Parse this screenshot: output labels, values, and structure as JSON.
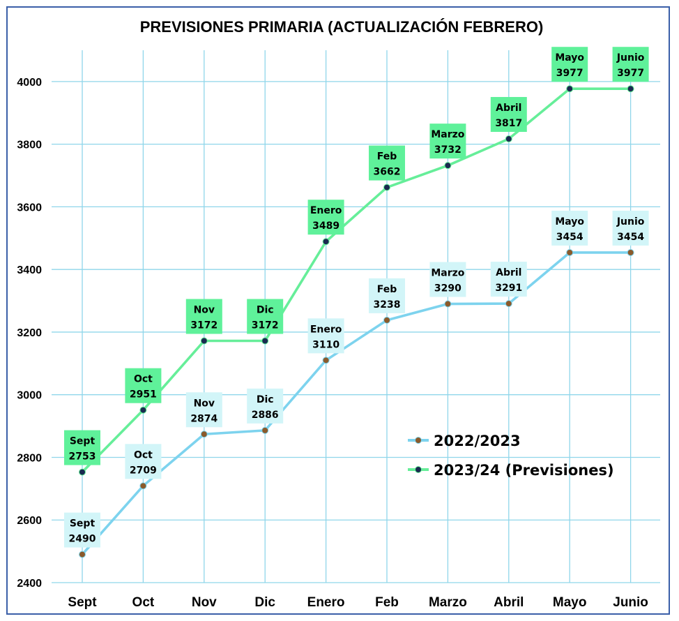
{
  "chart_data": {
    "type": "line",
    "title": "PREVISIONES PRIMARIA (ACTUALIZACIÓN FEBRERO)",
    "categories": [
      "Sept",
      "Oct",
      "Nov",
      "Dic",
      "Enero",
      "Feb",
      "Marzo",
      "Abril",
      "Mayo",
      "Junio"
    ],
    "ylim": [
      2400,
      4100
    ],
    "yticks": [
      2400,
      2600,
      2800,
      3000,
      3200,
      3400,
      3600,
      3800,
      4000
    ],
    "grid": true,
    "legend_position": "center-right",
    "series": [
      {
        "name": "2022/2023",
        "values": [
          2490,
          2709,
          2874,
          2886,
          3110,
          3238,
          3290,
          3291,
          3454,
          3454
        ],
        "line_color": "#7dd3ee",
        "marker_color": "#8b5a2b",
        "label_bg": "#d2f5f8"
      },
      {
        "name": "2023/24 (Previsiones)",
        "values": [
          2753,
          2951,
          3172,
          3172,
          3489,
          3662,
          3732,
          3817,
          3977,
          3977
        ],
        "line_color": "#66ee99",
        "marker_color": "#1a2a50",
        "label_bg": "#5ff19a"
      }
    ],
    "grid_color": "#8fd6ea"
  }
}
